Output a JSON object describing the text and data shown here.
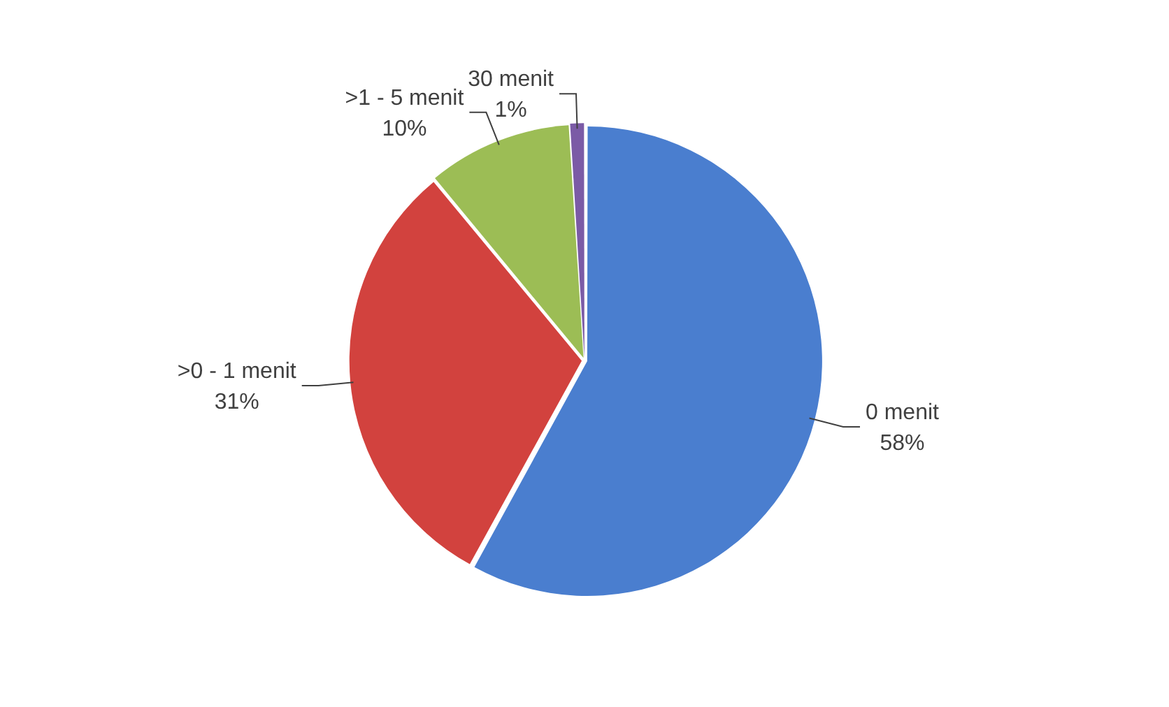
{
  "chart_data": {
    "type": "pie",
    "categories": [
      "0 menit",
      ">0 - 1 menit",
      ">1 - 5 menit",
      "30 menit"
    ],
    "values": [
      58,
      31,
      10,
      1
    ],
    "colors": [
      "#4a7ecf",
      "#d2423e",
      "#9cbd55",
      "#7b5ba6"
    ],
    "value_labels": [
      "58%",
      "31%",
      "10%",
      "1%"
    ]
  }
}
